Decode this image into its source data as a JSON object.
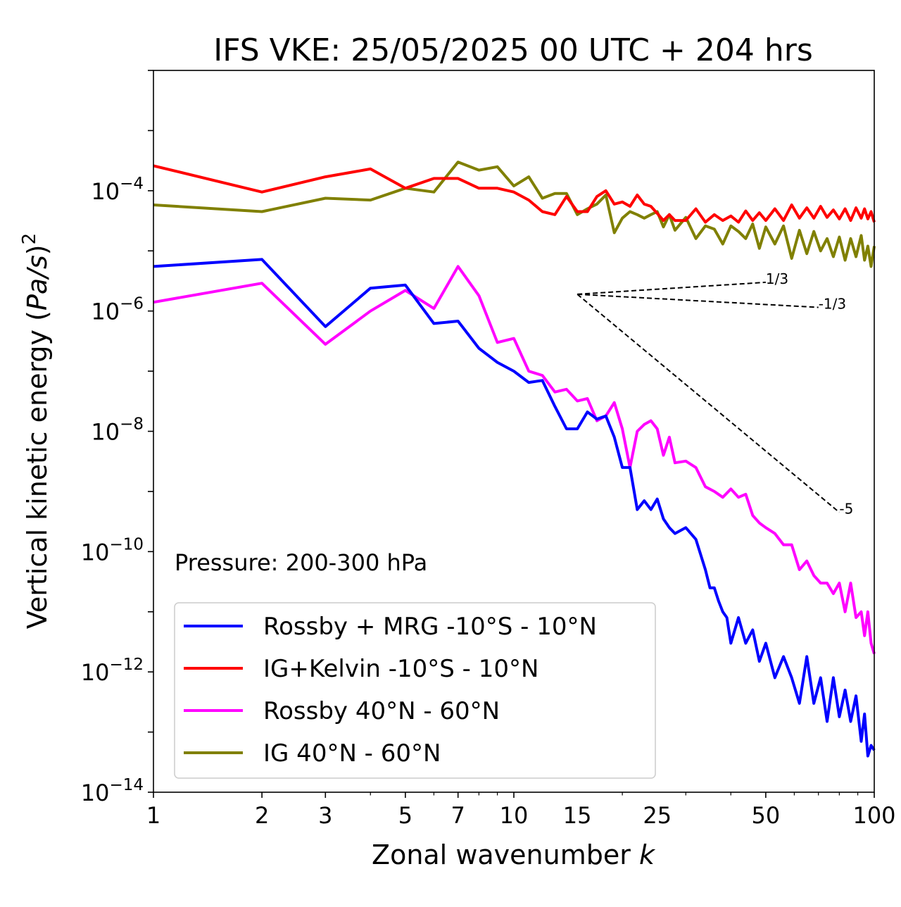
{
  "chart_data": {
    "type": "line",
    "title": "IFS VKE: 25/05/2025 00 UTC + 204 hrs",
    "xlabel": "Zonal wavenumber k",
    "xlabel_main": "Zonal wavenumber ",
    "xlabel_var": "k",
    "ylabel": "Vertical kinetic energy (Pa/s)²",
    "ylabel_main": "Vertical kinetic energy (",
    "ylabel_var": "Pa/s",
    "ylabel_close": ")",
    "ylabel_exp": "2",
    "xscale": "log",
    "yscale": "log",
    "xlim": [
      1,
      100
    ],
    "ylim": [
      1e-14,
      0.01
    ],
    "xticks": [
      1,
      2,
      3,
      5,
      7,
      10,
      15,
      25,
      50,
      100
    ],
    "xtick_labels": [
      "1",
      "2",
      "3",
      "5",
      "7",
      "10",
      "15",
      "25",
      "50",
      "100"
    ],
    "yticks": [
      {
        "value": 0.0001,
        "base": "10",
        "exp": "−4"
      },
      {
        "value": 1e-06,
        "base": "10",
        "exp": "−6"
      },
      {
        "value": 1e-08,
        "base": "10",
        "exp": "−8"
      },
      {
        "value": 1e-10,
        "base": "10",
        "exp": "−10"
      },
      {
        "value": 1e-12,
        "base": "10",
        "exp": "−12"
      },
      {
        "value": 1e-14,
        "base": "10",
        "exp": "−14"
      }
    ],
    "annotation": "Pressure: 200-300 hPa",
    "legend_position": "lower-left",
    "series": [
      {
        "name": "Rossby + MRG -10°S - 10°N",
        "color": "#0000ff",
        "points": [
          [
            1,
            5.5e-06
          ],
          [
            2,
            7.2e-06
          ],
          [
            3,
            5.5e-07
          ],
          [
            4,
            2.4e-06
          ],
          [
            5,
            2.7e-06
          ],
          [
            6,
            6.2e-07
          ],
          [
            7,
            6.8e-07
          ],
          [
            8,
            2.4e-07
          ],
          [
            9,
            1.4e-07
          ],
          [
            10,
            1e-07
          ],
          [
            11,
            6.5e-08
          ],
          [
            12,
            7e-08
          ],
          [
            13,
            2.6e-08
          ],
          [
            14,
            1.1e-08
          ],
          [
            15,
            1.1e-08
          ],
          [
            16,
            2.1e-08
          ],
          [
            17,
            1.6e-08
          ],
          [
            18,
            1.8e-08
          ],
          [
            19,
            8e-09
          ],
          [
            20,
            2.5e-09
          ],
          [
            21,
            2.5e-09
          ],
          [
            22,
            5e-10
          ],
          [
            23,
            7e-10
          ],
          [
            24,
            5e-10
          ],
          [
            25,
            7.5e-10
          ],
          [
            26,
            3.5e-10
          ],
          [
            27,
            2.5e-10
          ],
          [
            28,
            2e-10
          ],
          [
            30,
            2.5e-10
          ],
          [
            32,
            1.6e-10
          ],
          [
            34,
            5e-11
          ],
          [
            35,
            2.5e-11
          ],
          [
            36,
            2.5e-11
          ],
          [
            37,
            1.5e-11
          ],
          [
            38,
            1e-11
          ],
          [
            39,
            8e-12
          ],
          [
            40,
            3e-12
          ],
          [
            42,
            8e-12
          ],
          [
            44,
            3e-12
          ],
          [
            46,
            5e-12
          ],
          [
            48,
            1.5e-12
          ],
          [
            50,
            3e-12
          ],
          [
            53,
            8e-13
          ],
          [
            56,
            1.8e-12
          ],
          [
            59,
            8e-13
          ],
          [
            62,
            3e-13
          ],
          [
            65,
            1.8e-12
          ],
          [
            68,
            3e-13
          ],
          [
            71,
            8e-13
          ],
          [
            74,
            1.5e-13
          ],
          [
            77,
            8e-13
          ],
          [
            80,
            1.8e-13
          ],
          [
            83,
            5e-13
          ],
          [
            86,
            1.5e-13
          ],
          [
            89,
            4e-13
          ],
          [
            92,
            7e-14
          ],
          [
            94,
            2e-13
          ],
          [
            96,
            4e-14
          ],
          [
            98,
            6e-14
          ],
          [
            100,
            5e-14
          ]
        ]
      },
      {
        "name": "IG+Kelvin -10°S - 10°N",
        "color": "#ff0000",
        "points": [
          [
            1,
            0.00026
          ],
          [
            2,
            9.5e-05
          ],
          [
            3,
            0.00017
          ],
          [
            4,
            0.00023
          ],
          [
            5,
            0.00011
          ],
          [
            6,
            0.00016
          ],
          [
            7,
            0.00016
          ],
          [
            8,
            0.00011
          ],
          [
            9,
            0.00011
          ],
          [
            10,
            9.5e-05
          ],
          [
            11,
            7e-05
          ],
          [
            12,
            4.5e-05
          ],
          [
            13,
            4e-05
          ],
          [
            14,
            8e-05
          ],
          [
            15,
            4.5e-05
          ],
          [
            16,
            4.5e-05
          ],
          [
            17,
            8e-05
          ],
          [
            18,
            0.0001
          ],
          [
            19,
            6e-05
          ],
          [
            20,
            6.5e-05
          ],
          [
            21,
            5.5e-05
          ],
          [
            22,
            8.5e-05
          ],
          [
            23,
            6e-05
          ],
          [
            24,
            5.5e-05
          ],
          [
            25,
            4.2e-05
          ],
          [
            26,
            3.2e-05
          ],
          [
            27,
            4e-05
          ],
          [
            28,
            3.2e-05
          ],
          [
            30,
            3.2e-05
          ],
          [
            32,
            5e-05
          ],
          [
            34,
            3e-05
          ],
          [
            36,
            4e-05
          ],
          [
            38,
            3.2e-05
          ],
          [
            40,
            3.8e-05
          ],
          [
            42,
            3e-05
          ],
          [
            44,
            4.6e-05
          ],
          [
            46,
            3.2e-05
          ],
          [
            48,
            4.3e-05
          ],
          [
            50,
            3.2e-05
          ],
          [
            53,
            5e-05
          ],
          [
            56,
            3.2e-05
          ],
          [
            59,
            5.8e-05
          ],
          [
            62,
            3.5e-05
          ],
          [
            65,
            5.2e-05
          ],
          [
            68,
            3.5e-05
          ],
          [
            71,
            5.5e-05
          ],
          [
            74,
            3.6e-05
          ],
          [
            77,
            4.8e-05
          ],
          [
            80,
            3.4e-05
          ],
          [
            83,
            5e-05
          ],
          [
            86,
            3.2e-05
          ],
          [
            89,
            5.2e-05
          ],
          [
            92,
            3.5e-05
          ],
          [
            94,
            5e-05
          ],
          [
            96,
            3.4e-05
          ],
          [
            98,
            4.5e-05
          ],
          [
            100,
            3e-05
          ]
        ]
      },
      {
        "name": "Rossby 40°N - 60°N",
        "color": "#ff00ff",
        "points": [
          [
            1,
            1.4e-06
          ],
          [
            2,
            2.9e-06
          ],
          [
            3,
            2.8e-07
          ],
          [
            4,
            1e-06
          ],
          [
            5,
            2.2e-06
          ],
          [
            6,
            1.1e-06
          ],
          [
            7,
            5.5e-06
          ],
          [
            8,
            1.8e-06
          ],
          [
            9,
            3e-07
          ],
          [
            10,
            3.5e-07
          ],
          [
            11,
            1e-07
          ],
          [
            12,
            8.5e-08
          ],
          [
            13,
            4.5e-08
          ],
          [
            14,
            5e-08
          ],
          [
            15,
            3.2e-08
          ],
          [
            16,
            3.5e-08
          ],
          [
            17,
            1.5e-08
          ],
          [
            18,
            1.8e-08
          ],
          [
            19,
            3e-08
          ],
          [
            20,
            1.1e-08
          ],
          [
            21,
            2.5e-09
          ],
          [
            22,
            1e-08
          ],
          [
            23,
            1.3e-08
          ],
          [
            24,
            1.5e-08
          ],
          [
            25,
            1.1e-08
          ],
          [
            26,
            4e-09
          ],
          [
            27,
            8e-09
          ],
          [
            28,
            3e-09
          ],
          [
            30,
            3.2e-09
          ],
          [
            32,
            2.5e-09
          ],
          [
            34,
            1.2e-09
          ],
          [
            36,
            1e-09
          ],
          [
            38,
            8e-10
          ],
          [
            40,
            1.1e-09
          ],
          [
            42,
            8e-10
          ],
          [
            44,
            9e-10
          ],
          [
            46,
            4e-10
          ],
          [
            48,
            3e-10
          ],
          [
            50,
            2.5e-10
          ],
          [
            53,
            2e-10
          ],
          [
            56,
            1.3e-10
          ],
          [
            59,
            1.3e-10
          ],
          [
            62,
            5e-11
          ],
          [
            65,
            7e-11
          ],
          [
            68,
            4e-11
          ],
          [
            71,
            3e-11
          ],
          [
            74,
            3e-11
          ],
          [
            77,
            2e-11
          ],
          [
            80,
            3e-11
          ],
          [
            83,
            1e-11
          ],
          [
            86,
            3e-11
          ],
          [
            89,
            8e-12
          ],
          [
            92,
            1e-11
          ],
          [
            94,
            4e-12
          ],
          [
            96,
            1e-11
          ],
          [
            98,
            3e-12
          ],
          [
            100,
            2e-12
          ]
        ]
      },
      {
        "name": "IG 40°N - 60°N",
        "color": "#808000",
        "points": [
          [
            1,
            5.8e-05
          ],
          [
            2,
            4.5e-05
          ],
          [
            3,
            7.5e-05
          ],
          [
            4,
            7e-05
          ],
          [
            5,
            0.00011
          ],
          [
            6,
            9.5e-05
          ],
          [
            7,
            0.0003
          ],
          [
            8,
            0.00022
          ],
          [
            9,
            0.00025
          ],
          [
            10,
            0.00012
          ],
          [
            11,
            0.00017
          ],
          [
            12,
            7.5e-05
          ],
          [
            13,
            9e-05
          ],
          [
            14,
            9e-05
          ],
          [
            15,
            4e-05
          ],
          [
            16,
            5e-05
          ],
          [
            17,
            6e-05
          ],
          [
            18,
            8.5e-05
          ],
          [
            19,
            2e-05
          ],
          [
            20,
            3.5e-05
          ],
          [
            21,
            4.5e-05
          ],
          [
            22,
            4e-05
          ],
          [
            23,
            3.5e-05
          ],
          [
            24,
            4e-05
          ],
          [
            25,
            4.5e-05
          ],
          [
            26,
            2.5e-05
          ],
          [
            27,
            4e-05
          ],
          [
            28,
            2.2e-05
          ],
          [
            30,
            3.6e-05
          ],
          [
            32,
            1.6e-05
          ],
          [
            34,
            2.6e-05
          ],
          [
            36,
            2.3e-05
          ],
          [
            38,
            1.3e-05
          ],
          [
            40,
            2.6e-05
          ],
          [
            42,
            2.1e-05
          ],
          [
            44,
            1.6e-05
          ],
          [
            46,
            2.8e-05
          ],
          [
            48,
            1.1e-05
          ],
          [
            50,
            2.5e-05
          ],
          [
            53,
            1.3e-05
          ],
          [
            56,
            2.6e-05
          ],
          [
            59,
            7.5e-06
          ],
          [
            62,
            2.2e-05
          ],
          [
            65,
            9e-06
          ],
          [
            68,
            2.1e-05
          ],
          [
            71,
            1e-05
          ],
          [
            74,
            1.6e-05
          ],
          [
            77,
            8e-06
          ],
          [
            80,
            1.7e-05
          ],
          [
            83,
            7e-06
          ],
          [
            86,
            1.6e-05
          ],
          [
            89,
            8e-06
          ],
          [
            92,
            1.8e-05
          ],
          [
            94,
            7e-06
          ],
          [
            96,
            1.2e-05
          ],
          [
            98,
            5.5e-06
          ],
          [
            100,
            1.2e-05
          ]
        ]
      }
    ],
    "slope_lines": [
      {
        "label": "1/3",
        "from": [
          15,
          1.9e-06
        ],
        "to": [
          50,
          3e-06
        ]
      },
      {
        "label": "-1/3",
        "from": [
          15,
          1.9e-06
        ],
        "to": [
          70,
          1.15e-06
        ]
      },
      {
        "label": "-5",
        "from": [
          15,
          1.9e-06
        ],
        "to": [
          80,
          4.5e-10
        ]
      }
    ]
  }
}
